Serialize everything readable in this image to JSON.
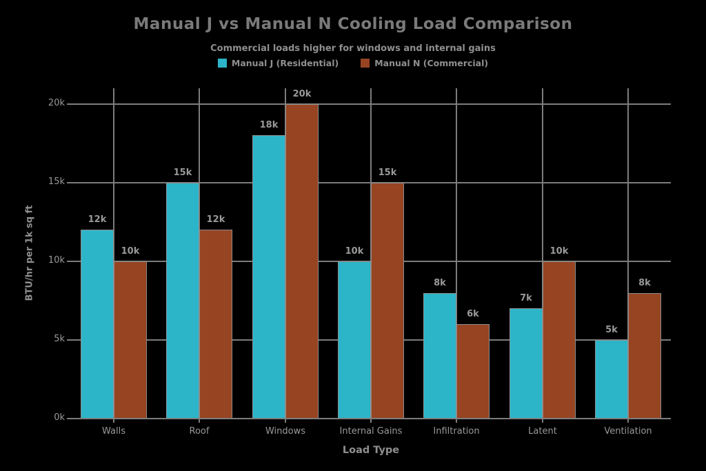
{
  "chart_data": {
    "type": "bar",
    "title": "Manual J vs Manual N Cooling Load Comparison",
    "subtitle": "Commercial loads higher for windows and internal gains",
    "xlabel": "Load Type",
    "ylabel": "BTU/hr per 1k sq ft",
    "categories": [
      "Walls",
      "Roof",
      "Windows",
      "Internal Gains",
      "Infiltration",
      "Latent",
      "Ventilation"
    ],
    "series": [
      {
        "name": "Manual J (Residential)",
        "color": "#2cb5c9",
        "values": [
          12000,
          15000,
          18000,
          10000,
          8000,
          7000,
          5000
        ],
        "labels": [
          "12k",
          "15k",
          "18k",
          "10k",
          "8k",
          "7k",
          "5k"
        ]
      },
      {
        "name": "Manual N (Commercial)",
        "color": "#974422",
        "values": [
          10000,
          12000,
          20000,
          15000,
          6000,
          10000,
          8000
        ],
        "labels": [
          "10k",
          "12k",
          "20k",
          "15k",
          "6k",
          "10k",
          "8k"
        ]
      }
    ],
    "yticks": [
      {
        "value": 0,
        "label": "0k"
      },
      {
        "value": 5000,
        "label": "5k"
      },
      {
        "value": 10000,
        "label": "10k"
      },
      {
        "value": 15000,
        "label": "15k"
      },
      {
        "value": 20000,
        "label": "20k"
      }
    ],
    "ylim": [
      0,
      21000
    ],
    "grid": true,
    "legend_position": "top",
    "colors": {
      "background": "#000000",
      "grid": "#7d7d7d",
      "axis": "#7d7d7d",
      "bar_outline": "#8e8e8e",
      "text": "#999999",
      "title": "#7a7a7a",
      "subtitle": "#8f8f8f"
    }
  }
}
